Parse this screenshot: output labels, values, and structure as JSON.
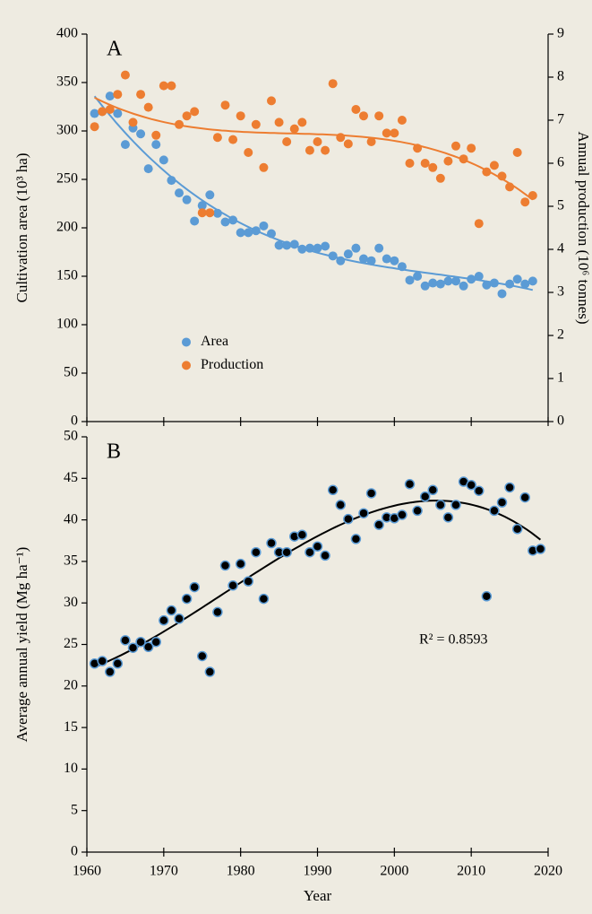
{
  "chart_data": [
    {
      "type": "scatter",
      "annotation": "A",
      "x": [
        1961,
        1962,
        1963,
        1964,
        1965,
        1966,
        1967,
        1968,
        1969,
        1970,
        1971,
        1972,
        1973,
        1974,
        1975,
        1976,
        1977,
        1978,
        1979,
        1980,
        1981,
        1982,
        1983,
        1984,
        1985,
        1986,
        1987,
        1988,
        1989,
        1990,
        1991,
        1992,
        1993,
        1994,
        1995,
        1996,
        1997,
        1998,
        1999,
        2000,
        2001,
        2002,
        2003,
        2004,
        2005,
        2006,
        2007,
        2008,
        2009,
        2010,
        2011,
        2012,
        2013,
        2014,
        2015,
        2016,
        2017,
        2018
      ],
      "series": [
        {
          "name": "Area",
          "color": "#5b9bd5",
          "values": [
            318,
            320,
            336,
            318,
            286,
            303,
            297,
            261,
            286,
            270,
            249,
            236,
            229,
            207,
            223,
            234,
            215,
            206,
            208,
            195,
            195,
            197,
            202,
            194,
            182,
            182,
            183,
            178,
            179,
            179,
            181,
            171,
            166,
            173,
            179,
            168,
            166,
            179,
            168,
            166,
            160,
            146,
            150,
            140,
            143,
            142,
            145,
            145,
            140,
            147,
            150,
            141,
            143,
            132,
            142,
            147,
            142,
            145
          ]
        },
        {
          "name": "Production",
          "color": "#ed7d31",
          "axis": "y2",
          "values": [
            6.85,
            7.2,
            7.25,
            7.6,
            8.05,
            6.95,
            7.6,
            7.3,
            6.65,
            7.8,
            7.8,
            6.9,
            7.1,
            7.2,
            4.85,
            4.85,
            6.6,
            7.35,
            6.55,
            7.1,
            6.25,
            6.9,
            5.9,
            7.45,
            6.95,
            6.5,
            6.8,
            6.95,
            6.3,
            6.5,
            6.3,
            7.85,
            6.6,
            6.45,
            7.25,
            7.1,
            6.5,
            7.1,
            6.7,
            6.7,
            7.0,
            6.0,
            6.35,
            6.0,
            5.9,
            5.65,
            6.05,
            6.4,
            6.1,
            6.35,
            4.6,
            5.8,
            5.95,
            5.7,
            5.45,
            6.25,
            5.1,
            5.25
          ]
        }
      ],
      "xlim": [
        1960,
        2020
      ],
      "ylim": [
        0,
        400
      ],
      "yticks": [
        0,
        50,
        100,
        150,
        200,
        250,
        300,
        350,
        400
      ],
      "y2lim": [
        0,
        9
      ],
      "y2ticks": [
        0,
        1,
        2,
        3,
        4,
        5,
        6,
        7,
        8,
        9
      ],
      "ylabel": "Cultivation area (10³ ha)",
      "y2label": "Annual production (10⁶ tonnes)",
      "legend": "center"
    },
    {
      "type": "scatter",
      "annotation": "B",
      "x": [
        1961,
        1962,
        1963,
        1964,
        1965,
        1966,
        1967,
        1968,
        1969,
        1970,
        1971,
        1972,
        1973,
        1974,
        1975,
        1976,
        1977,
        1978,
        1979,
        1980,
        1981,
        1982,
        1983,
        1984,
        1985,
        1986,
        1987,
        1988,
        1989,
        1990,
        1991,
        1992,
        1993,
        1994,
        1995,
        1996,
        1997,
        1998,
        1999,
        2000,
        2001,
        2002,
        2003,
        2004,
        2005,
        2006,
        2007,
        2008,
        2009,
        2010,
        2011,
        2012,
        2013,
        2014,
        2015,
        2016,
        2017,
        2018,
        2019
      ],
      "series": [
        {
          "color": "#000000",
          "edge": "#5b9bd5",
          "values": [
            22.7,
            23,
            21.7,
            22.7,
            25.5,
            24.6,
            25.3,
            24.7,
            25.3,
            27.9,
            29.1,
            28.1,
            30.5,
            31.9,
            23.6,
            21.7,
            28.9,
            34.5,
            32.1,
            34.7,
            32.6,
            36.1,
            30.5,
            37.2,
            36.1,
            36.1,
            38,
            38.2,
            36.1,
            36.8,
            35.7,
            43.6,
            41.8,
            40.1,
            37.7,
            40.8,
            43.2,
            39.4,
            40.3,
            40.2,
            40.6,
            44.3,
            41.1,
            42.8,
            43.6,
            41.8,
            40.3,
            41.8,
            44.6,
            44.2,
            43.5,
            30.8,
            41.1,
            42.1,
            43.9,
            38.9,
            42.7,
            36.3,
            36.5
          ]
        }
      ],
      "xlim": [
        1960,
        2020
      ],
      "xticks": [
        1960,
        1970,
        1980,
        1990,
        2000,
        2010,
        2020
      ],
      "ylim": [
        0,
        50
      ],
      "yticks": [
        0,
        5,
        10,
        15,
        20,
        25,
        30,
        35,
        40,
        45,
        50
      ],
      "xlabel": "Year",
      "ylabel": "Average annual yield (Mg ha⁻¹)",
      "r2": "R² = 0.8593"
    }
  ]
}
